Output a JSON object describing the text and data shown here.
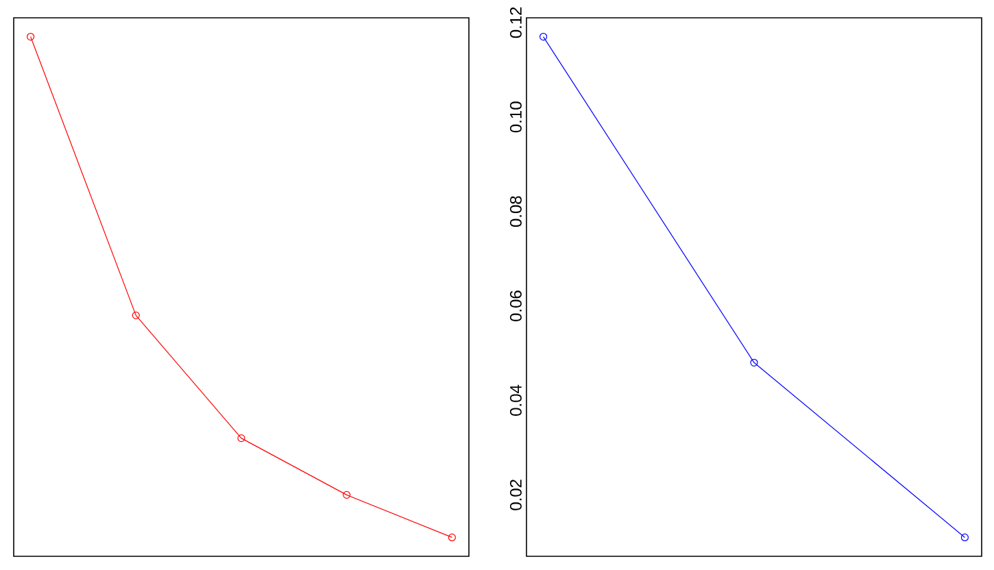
{
  "chart_data": [
    {
      "type": "line",
      "categories": [
        null,
        null,
        null,
        null,
        null
      ],
      "series": [
        {
          "color": "#ff0000",
          "values": [
            0.117,
            0.058,
            0.032,
            0.02,
            0.011
          ]
        }
      ],
      "ylim": [
        0.007,
        0.121
      ],
      "marker": "circle",
      "line_style": "solid",
      "tick_labels": false
    },
    {
      "type": "line",
      "categories": [
        null,
        null,
        null
      ],
      "series": [
        {
          "color": "#0000ff",
          "values": [
            0.117,
            0.048,
            0.011
          ]
        }
      ],
      "ylim": [
        0.007,
        0.121
      ],
      "yticks": [
        {
          "value": 0.02,
          "label": "0.02"
        },
        {
          "value": 0.04,
          "label": "0.04"
        },
        {
          "value": 0.06,
          "label": "0.06"
        },
        {
          "value": 0.08,
          "label": "0.08"
        },
        {
          "value": 0.1,
          "label": "0.10"
        },
        {
          "value": 0.12,
          "label": "0.12"
        }
      ],
      "marker": "circle",
      "line_style": "solid",
      "tick_labels": "y"
    }
  ]
}
